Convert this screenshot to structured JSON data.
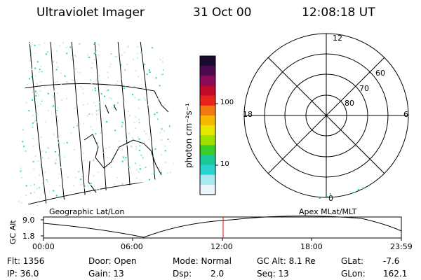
{
  "header": {
    "instrument": "Ultraviolet Imager",
    "date": "31 Oct 00",
    "time": "12:08:18 UT"
  },
  "map": {
    "left_label": "Geographic Lat/Lon",
    "right_label": "Apex  MLat/MLT"
  },
  "colorbar": {
    "unit_label": "photon cm⁻²s⁻¹",
    "ticks": [
      "100",
      "10"
    ],
    "colors": [
      "#1a0a2e",
      "#4b0a4e",
      "#8a0a5a",
      "#c00a2a",
      "#e8241a",
      "#f07a10",
      "#f5b800",
      "#e6e600",
      "#9ee000",
      "#3ccc2a",
      "#1ac89a",
      "#2ad2d2",
      "#a8e8f0",
      "#e6f6fa"
    ]
  },
  "polar": {
    "mlt_labels": {
      "top": "12",
      "left": "18",
      "right": "6",
      "bottom": "0"
    },
    "lat_labels": [
      "60",
      "70",
      "80"
    ]
  },
  "altitude_plot": {
    "ylabel": "GC Alt",
    "yticks": [
      "9.0",
      "1.8"
    ],
    "xticks": [
      "00:00",
      "06:00",
      "12:00",
      "18:00",
      "23:59"
    ],
    "current_time_marker": "12:08",
    "marker_color": "#d01010"
  },
  "info": {
    "flt": "Flt: 1356",
    "ip": "IP: 36.0",
    "door": "Door: Open",
    "gain": "Gain: 13",
    "mode": "Mode: Normal",
    "dsp_label": "Dsp:",
    "dsp_value": "2.0",
    "gcalt": "GC Alt: 8.1 Re",
    "seq": "Seq: 13",
    "glat_label": "GLat:",
    "glat_value": "-7.6",
    "glon_label": "GLon:",
    "glon_value": "162.1"
  }
}
